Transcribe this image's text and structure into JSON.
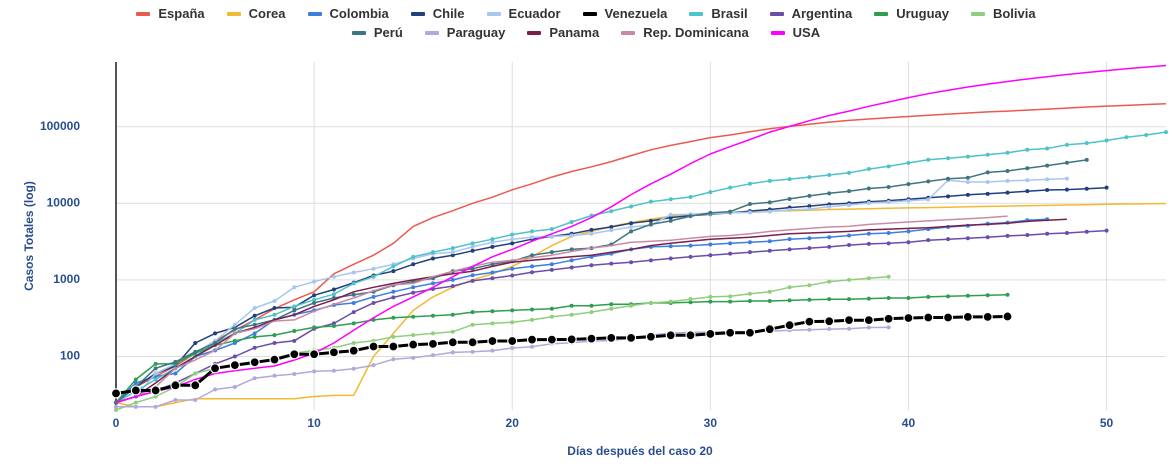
{
  "chart_data": {
    "type": "line",
    "log": true,
    "grid": true,
    "xlabel": "Días después del caso 20",
    "ylabel": "Casos Totales (log)",
    "xlim": [
      0,
      53
    ],
    "xticks": [
      0,
      10,
      20,
      30,
      40,
      50
    ],
    "ylim": [
      20,
      700000
    ],
    "yticks": [
      100,
      1000,
      10000,
      100000
    ],
    "x": [
      0,
      1,
      2,
      3,
      4,
      5,
      6,
      7,
      8,
      9,
      10,
      11,
      12,
      13,
      14,
      15,
      16,
      17,
      18,
      19,
      20,
      21,
      22,
      23,
      24,
      25,
      26,
      27,
      28,
      29,
      30,
      31,
      32,
      33,
      34,
      35,
      36,
      37,
      38,
      39,
      40,
      41,
      42,
      43,
      44,
      45,
      46,
      47,
      48,
      49,
      50,
      51,
      52,
      53
    ],
    "series": [
      {
        "name": "España",
        "color": "#ea5a4f",
        "markers": false,
        "values": [
          30,
          40,
          55,
          75,
          110,
          160,
          220,
          300,
          420,
          550,
          700,
          1200,
          1600,
          2100,
          3000,
          5000,
          6500,
          8000,
          10000,
          12000,
          15000,
          18000,
          22000,
          26000,
          30000,
          35000,
          42000,
          50000,
          57000,
          64000,
          72000,
          78000,
          86000,
          94000,
          101000,
          108000,
          115000,
          121000,
          126000,
          131000,
          136000,
          141000,
          146000,
          151000,
          156000,
          160000,
          165000,
          170000,
          175000,
          181000,
          186000,
          190000,
          195000,
          200000
        ]
      },
      {
        "name": "Corea",
        "color": "#f4b932",
        "markers": false,
        "values": [
          25,
          22,
          22,
          25,
          28,
          28,
          28,
          28,
          28,
          28,
          30,
          31,
          31,
          100,
          200,
          400,
          600,
          800,
          1000,
          1200,
          1500,
          2000,
          2800,
          3700,
          4300,
          5000,
          5600,
          6200,
          6800,
          7200,
          7400,
          7500,
          7700,
          7900,
          8000,
          8100,
          8300,
          8400,
          8500,
          8600,
          8700,
          8800,
          8900,
          9000,
          9100,
          9200,
          9300,
          9400,
          9500,
          9600,
          9700,
          9800,
          9850,
          9900
        ]
      },
      {
        "name": "Colombia",
        "color": "#3d7fe0",
        "markers": true,
        "values": [
          25,
          45,
          55,
          60,
          100,
          120,
          150,
          200,
          300,
          350,
          400,
          470,
          500,
          600,
          700,
          800,
          900,
          1000,
          1150,
          1250,
          1400,
          1500,
          1600,
          1800,
          2000,
          2200,
          2500,
          2700,
          2750,
          2800,
          2900,
          3000,
          3100,
          3200,
          3400,
          3500,
          3600,
          3800,
          4000,
          4100,
          4300,
          4600,
          4900,
          5100,
          5400,
          5600,
          6000,
          6200,
          null,
          null,
          null,
          null,
          null,
          null
        ]
      },
      {
        "name": "Chile",
        "color": "#213f7a",
        "markers": true,
        "values": [
          25,
          40,
          60,
          75,
          150,
          200,
          240,
          340,
          430,
          440,
          630,
          750,
          920,
          1140,
          1300,
          1600,
          1900,
          2100,
          2400,
          2700,
          3000,
          3400,
          3700,
          4000,
          4500,
          4900,
          5500,
          5900,
          6500,
          6900,
          7200,
          7500,
          7900,
          8300,
          8800,
          9200,
          9700,
          10000,
          10500,
          10800,
          11300,
          11800,
          12300,
          12900,
          13300,
          13800,
          14400,
          14900,
          15100,
          15500,
          16000,
          null,
          null,
          null
        ]
      },
      {
        "name": "Ecuador",
        "color": "#a8c7f0",
        "markers": true,
        "values": [
          25,
          30,
          60,
          80,
          110,
          160,
          260,
          430,
          530,
          800,
          950,
          1100,
          1250,
          1400,
          1600,
          1900,
          2200,
          2300,
          2700,
          3100,
          3400,
          3600,
          3700,
          3800,
          4000,
          4450,
          4900,
          5200,
          7100,
          7200,
          7300,
          7500,
          7600,
          7800,
          8200,
          8400,
          9000,
          9500,
          10100,
          10400,
          10800,
          11200,
          20000,
          19000,
          19000,
          19600,
          20000,
          20500,
          21000,
          null,
          null,
          null,
          null,
          null
        ]
      },
      {
        "name": "Venezuela",
        "color": "#000000",
        "markers": true,
        "line_width": 3,
        "values": [
          33,
          36,
          36,
          42,
          42,
          70,
          77,
          84,
          91,
          107,
          107,
          113,
          119,
          135,
          135,
          143,
          146,
          153,
          153,
          159,
          159,
          166,
          166,
          167,
          171,
          175,
          175,
          181,
          189,
          189,
          197,
          204,
          204,
          227,
          256,
          285,
          288,
          298,
          298,
          311,
          318,
          323,
          323,
          329,
          329,
          333,
          null,
          null,
          null,
          null,
          null,
          null,
          null,
          null
        ]
      },
      {
        "name": "Brasil",
        "color": "#4fc2c9",
        "markers": true,
        "values": [
          25,
          35,
          50,
          70,
          100,
          150,
          200,
          300,
          350,
          450,
          550,
          650,
          900,
          1100,
          1500,
          2000,
          2300,
          2600,
          3000,
          3400,
          3900,
          4300,
          4600,
          5700,
          6900,
          7900,
          9100,
          10500,
          11300,
          12100,
          14000,
          16000,
          18000,
          19600,
          20700,
          22000,
          23400,
          25000,
          28000,
          30400,
          33700,
          37000,
          38700,
          40700,
          43100,
          45800,
          50000,
          52000,
          58000,
          61000,
          66000,
          73000,
          78000,
          85000
        ]
      },
      {
        "name": "Argentina",
        "color": "#6a4ea8",
        "markers": true,
        "values": [
          25,
          30,
          35,
          45,
          60,
          80,
          100,
          130,
          150,
          160,
          230,
          270,
          380,
          500,
          590,
          680,
          760,
          830,
          970,
          1050,
          1140,
          1260,
          1350,
          1450,
          1550,
          1630,
          1700,
          1800,
          1900,
          2000,
          2100,
          2200,
          2300,
          2400,
          2500,
          2600,
          2700,
          2850,
          2950,
          3000,
          3100,
          3300,
          3400,
          3500,
          3600,
          3750,
          3850,
          4000,
          4100,
          4250,
          4400,
          null,
          null,
          null
        ]
      },
      {
        "name": "Uruguay",
        "color": "#2f9e50",
        "markers": true,
        "values": [
          25,
          50,
          80,
          80,
          110,
          140,
          160,
          180,
          190,
          215,
          240,
          250,
          270,
          300,
          320,
          330,
          340,
          350,
          380,
          390,
          400,
          410,
          420,
          460,
          460,
          480,
          480,
          500,
          500,
          510,
          520,
          520,
          530,
          530,
          540,
          550,
          560,
          560,
          570,
          580,
          580,
          600,
          610,
          620,
          630,
          640,
          null,
          null,
          null,
          null,
          null,
          null,
          null,
          null
        ]
      },
      {
        "name": "Bolivia",
        "color": "#8fcf7c",
        "markers": true,
        "values": [
          20,
          25,
          30,
          40,
          60,
          70,
          75,
          80,
          95,
          110,
          120,
          130,
          150,
          160,
          180,
          190,
          200,
          210,
          260,
          270,
          280,
          300,
          330,
          350,
          380,
          420,
          460,
          500,
          520,
          560,
          600,
          610,
          660,
          700,
          800,
          850,
          950,
          1000,
          1050,
          1100,
          null,
          null,
          null,
          null,
          null,
          null,
          null,
          null,
          null,
          null,
          null,
          null,
          null,
          null
        ]
      },
      {
        "name": "Perú",
        "color": "#3f7581",
        "markers": true,
        "values": [
          25,
          40,
          70,
          85,
          115,
          150,
          230,
          260,
          300,
          400,
          500,
          580,
          640,
          700,
          850,
          950,
          1050,
          1300,
          1400,
          1600,
          1750,
          2100,
          2300,
          2500,
          2600,
          2900,
          4300,
          5300,
          5900,
          6800,
          7500,
          7800,
          9800,
          10300,
          11400,
          12500,
          13500,
          14400,
          15600,
          16300,
          17800,
          19300,
          20900,
          21600,
          25300,
          26400,
          28700,
          31100,
          33900,
          36900,
          null,
          null,
          null,
          null
        ]
      },
      {
        "name": "Paraguay",
        "color": "#b3a8dd",
        "markers": true,
        "values": [
          22,
          22,
          22,
          27,
          27,
          37,
          40,
          52,
          56,
          59,
          64,
          65,
          69,
          77,
          92,
          96,
          104,
          113,
          115,
          119,
          129,
          134,
          147,
          151,
          159,
          161,
          174,
          190,
          202,
          206,
          208,
          210,
          212,
          213,
          220,
          223,
          228,
          230,
          239,
          240,
          null,
          null,
          null,
          null,
          null,
          null,
          null,
          null,
          null,
          null,
          null,
          null,
          null,
          null
        ]
      },
      {
        "name": "Panama",
        "color": "#7a1f4b",
        "markers": false,
        "values": [
          25,
          30,
          45,
          70,
          100,
          140,
          200,
          240,
          300,
          350,
          450,
          550,
          700,
          800,
          900,
          1000,
          1100,
          1200,
          1300,
          1500,
          1700,
          1800,
          1900,
          2000,
          2100,
          2300,
          2500,
          2800,
          3000,
          3200,
          3400,
          3500,
          3600,
          3800,
          4000,
          4100,
          4200,
          4300,
          4500,
          4600,
          4700,
          4800,
          5000,
          5200,
          5300,
          5500,
          5800,
          6000,
          6200,
          null,
          null,
          null,
          null,
          null
        ]
      },
      {
        "name": "Rep. Dominicana",
        "color": "#c98aa8",
        "markers": false,
        "values": [
          25,
          30,
          40,
          70,
          90,
          120,
          200,
          230,
          290,
          300,
          390,
          480,
          580,
          720,
          860,
          900,
          1100,
          1300,
          1500,
          1700,
          1800,
          1950,
          2100,
          2350,
          2600,
          2800,
          3100,
          3200,
          3300,
          3500,
          3700,
          3800,
          4000,
          4300,
          4500,
          4700,
          4900,
          5000,
          5300,
          5500,
          5700,
          5900,
          6100,
          6300,
          6500,
          6800,
          null,
          null,
          null,
          null,
          null,
          null,
          null,
          null
        ]
      },
      {
        "name": "USA",
        "color": "#ff00ff",
        "markers": false,
        "values": [
          25,
          30,
          35,
          40,
          50,
          60,
          65,
          70,
          75,
          90,
          110,
          150,
          220,
          320,
          450,
          600,
          800,
          1100,
          1500,
          2000,
          2500,
          3200,
          4000,
          5000,
          6500,
          9000,
          13000,
          18000,
          24000,
          33000,
          44000,
          55000,
          68000,
          85000,
          101000,
          120000,
          140000,
          160000,
          185000,
          210000,
          240000,
          270000,
          300000,
          330000,
          360000,
          390000,
          420000,
          450000,
          480000,
          510000,
          540000,
          570000,
          600000,
          630000
        ]
      }
    ]
  }
}
